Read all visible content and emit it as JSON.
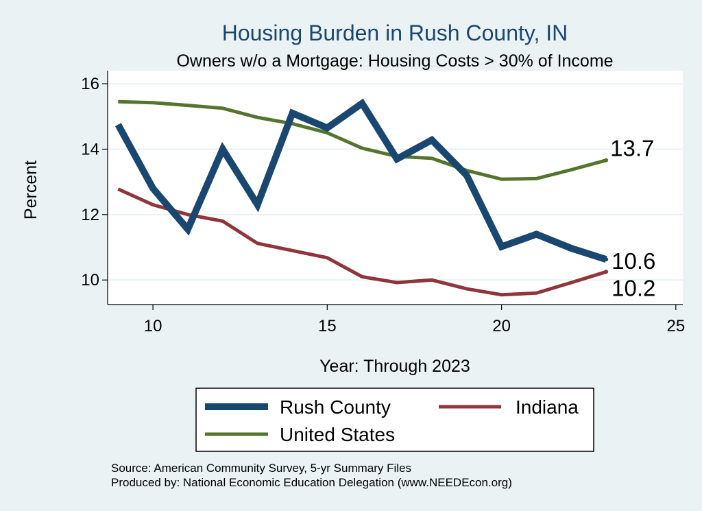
{
  "chart_data": {
    "type": "line",
    "title": "Housing Burden in Rush County, IN",
    "subtitle": "Owners w/o a Mortgage: Housing Costs > 30% of Income",
    "xlabel": "Year: Through 2023",
    "ylabel": "Percent",
    "xlim": [
      8.7,
      25.2
    ],
    "ylim": [
      9.25,
      16.4
    ],
    "xticks": [
      10,
      15,
      20,
      25
    ],
    "yticks": [
      10,
      12,
      14,
      16
    ],
    "x": [
      9,
      10,
      11,
      12,
      13,
      14,
      15,
      16,
      17,
      18,
      19,
      20,
      21,
      22,
      23
    ],
    "series": [
      {
        "name": "Rush County",
        "color": "#1a476f",
        "values": [
          14.75,
          12.8,
          11.55,
          14.0,
          12.3,
          15.1,
          14.65,
          15.4,
          13.7,
          14.28,
          13.2,
          11.02,
          11.4,
          10.97,
          10.63
        ],
        "end_label": "10.6"
      },
      {
        "name": "Indiana",
        "color": "#90353b",
        "values": [
          12.78,
          12.3,
          12.0,
          11.8,
          11.12,
          10.9,
          10.68,
          10.1,
          9.92,
          10.0,
          9.73,
          9.55,
          9.6,
          9.92,
          10.25
        ],
        "end_label": "10.2"
      },
      {
        "name": "United States",
        "color": "#55752f",
        "values": [
          15.45,
          15.42,
          15.34,
          15.25,
          14.97,
          14.78,
          14.5,
          14.03,
          13.78,
          13.72,
          13.35,
          13.08,
          13.1,
          13.37,
          13.66
        ],
        "end_label": "13.7"
      }
    ],
    "legend": {
      "position": "bottom",
      "entries": [
        "Rush County",
        "Indiana",
        "United States"
      ]
    }
  },
  "notes": {
    "source": "Source: American Community Survey, 5-yr Summary Files",
    "produced": "Produced by: National Economic Education Delegation (www.NEEDEcon.org)"
  },
  "colors": {
    "background": "#eaf2f3",
    "plot_background": "#ffffff",
    "gridline": "#eaf2f3"
  }
}
